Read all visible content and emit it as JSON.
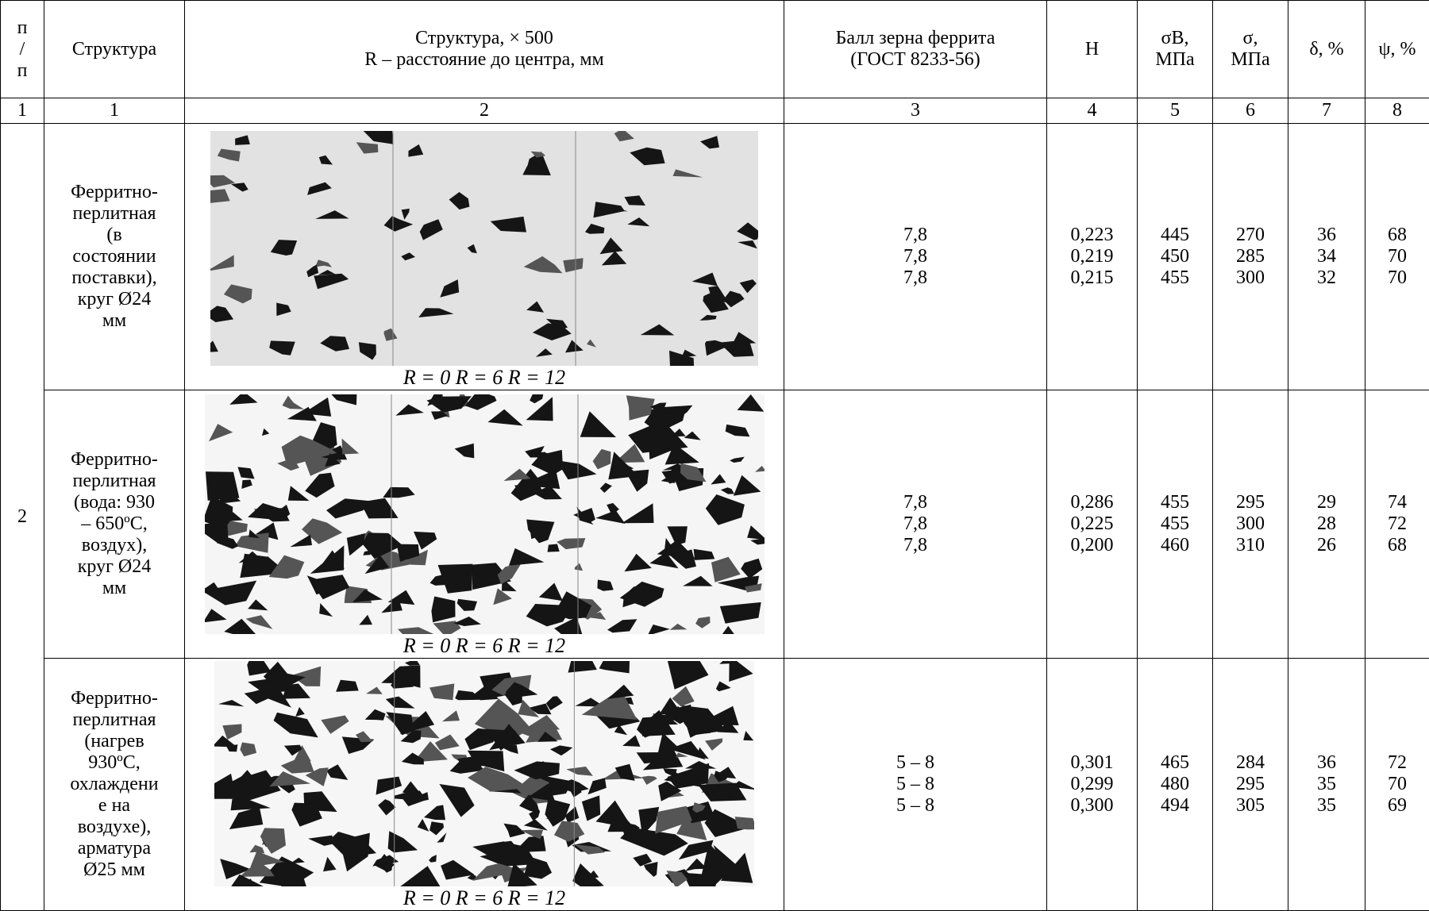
{
  "header": {
    "cells": [
      [
        "п",
        "/",
        "п"
      ],
      [
        "Структура"
      ],
      [
        "Структура, × 500",
        "R – расстояние до центра, мм"
      ],
      [
        "Балл зерна феррита",
        "(ГОСТ 8233-56)"
      ],
      [
        "Н"
      ],
      [
        "σВ,",
        "МПа"
      ],
      [
        "σ,",
        "МПа"
      ],
      [
        "δ, %"
      ],
      [
        "ψ, %"
      ]
    ],
    "numbers": [
      "1",
      "1",
      "2",
      "3",
      "4",
      "5",
      "6",
      "7",
      "8"
    ]
  },
  "group_label": "2",
  "rows": [
    {
      "structure": [
        "Ферритно-",
        "перлитная",
        "(в",
        "состоянии",
        "поставки),",
        "круг Ø24",
        "мм"
      ],
      "caption": "R = 0  R = 6  R = 12",
      "grain": [
        "7,8",
        "7,8",
        "7,8"
      ],
      "H": [
        "0,223",
        "0,219",
        "0,215"
      ],
      "sigma_b": [
        "445",
        "450",
        "455"
      ],
      "sigma": [
        "270",
        "285",
        "300"
      ],
      "delta": [
        "36",
        "34",
        "32"
      ],
      "psi": [
        "68",
        "70",
        "70"
      ]
    },
    {
      "structure": [
        "Ферритно-",
        "перлитная",
        "(вода: 930",
        "– 650ºС,",
        "воздух),",
        "круг Ø24",
        "мм"
      ],
      "caption": "R = 0  R = 6  R = 12",
      "grain": [
        "7,8",
        "7,8",
        "7,8"
      ],
      "H": [
        "0,286",
        "0,225",
        "0,200"
      ],
      "sigma_b": [
        "455",
        "455",
        "460"
      ],
      "sigma": [
        "295",
        "300",
        "310"
      ],
      "delta": [
        "29",
        "28",
        "26"
      ],
      "psi": [
        "74",
        "72",
        "68"
      ]
    },
    {
      "structure": [
        "Ферритно-",
        "перлитная",
        "(нагрев",
        "930ºС,",
        "охлаждени",
        "е на",
        "воздухе),",
        "арматура",
        "Ø25 мм"
      ],
      "caption": "R = 0  R = 6  R = 12",
      "grain": [
        "5 – 8",
        "5 – 8",
        "5 – 8"
      ],
      "H": [
        "0,301",
        "0,299",
        "0,300"
      ],
      "sigma_b": [
        "465",
        "480",
        "494"
      ],
      "sigma": [
        "284",
        "295",
        "305"
      ],
      "delta": [
        "36",
        "35",
        "35"
      ],
      "psi": [
        "72",
        "70",
        "69"
      ]
    }
  ]
}
